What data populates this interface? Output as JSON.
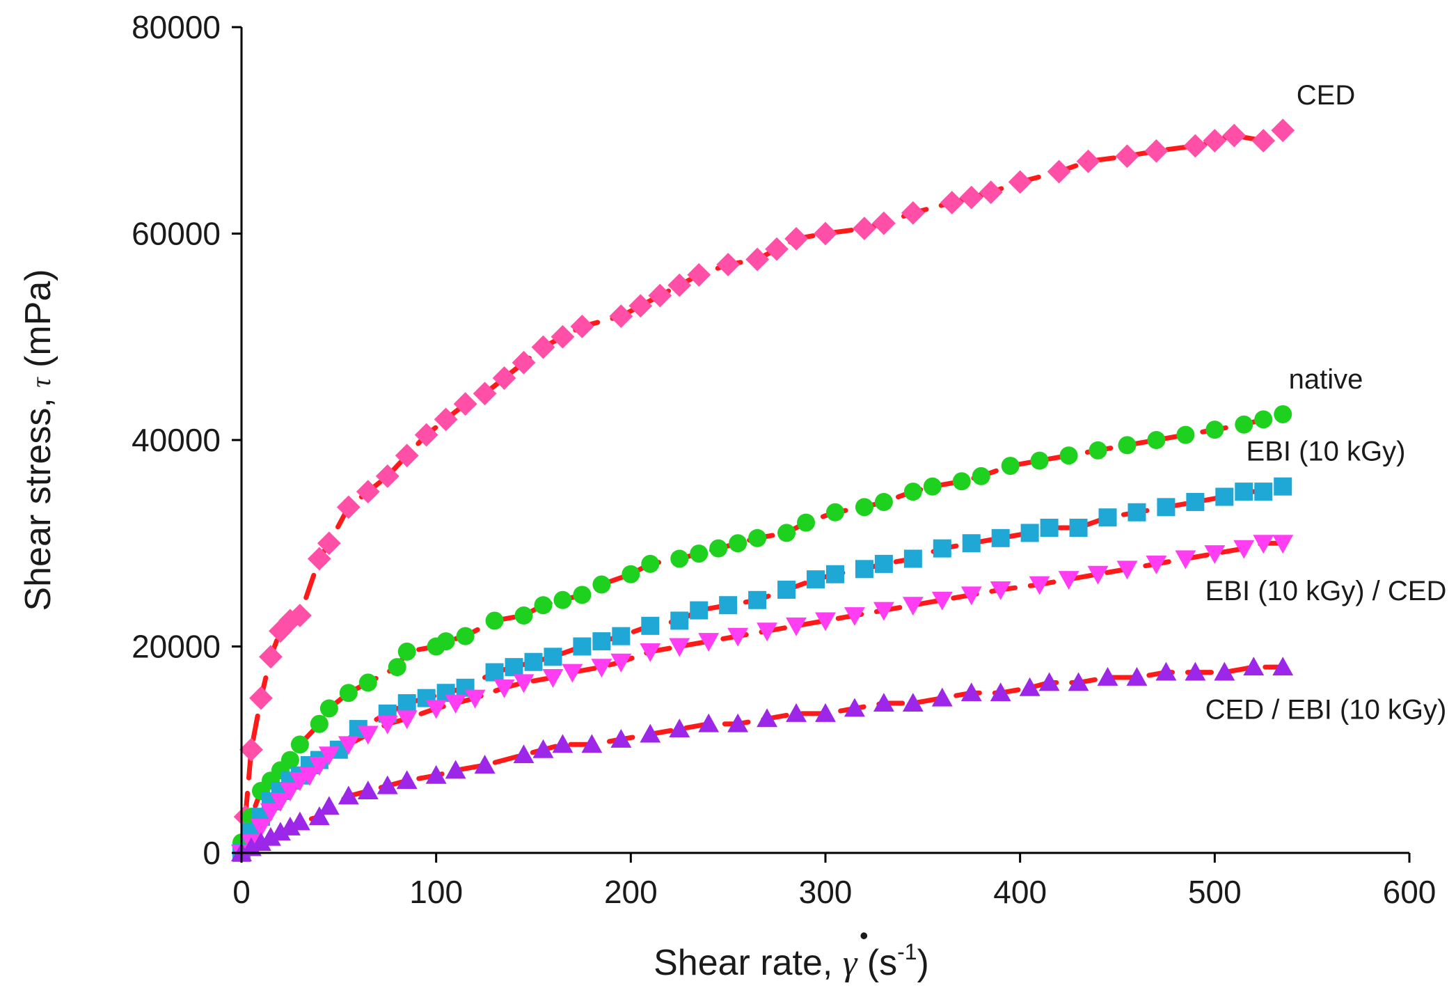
{
  "chart_data": {
    "type": "scatter",
    "title": "",
    "xlabel": "Shear rate, γ̇ (s⁻¹)",
    "xlabel_parts": {
      "prefix": "Shear rate, ",
      "symbol": "γ",
      "open": " (s",
      "sup": "-1",
      "close": ")"
    },
    "ylabel": "Shear stress, τ (mPa)",
    "ylabel_parts": {
      "prefix": "Shear stress, ",
      "symbol": "τ",
      "suffix": " (mPa)"
    },
    "xlim": [
      0,
      600
    ],
    "ylim": [
      0,
      80000
    ],
    "xticks": [
      "0",
      "100",
      "200",
      "300",
      "400",
      "500",
      "600"
    ],
    "yticks": [
      "0",
      "20000",
      "40000",
      "60000",
      "80000"
    ],
    "grid": false,
    "legend": "inline labels at right end of each series",
    "fit_line_color": "#ff1a1a",
    "series": [
      {
        "name": "CED",
        "label": "CED",
        "marker": "diamond",
        "color": "#ff4fa6",
        "x": [
          2,
          5,
          10,
          15,
          20,
          25,
          30,
          40,
          45,
          55,
          65,
          75,
          85,
          95,
          105,
          115,
          125,
          135,
          145,
          155,
          165,
          175,
          195,
          205,
          215,
          225,
          235,
          250,
          265,
          275,
          285,
          300,
          320,
          330,
          345,
          365,
          375,
          385,
          400,
          420,
          435,
          455,
          470,
          490,
          500,
          510,
          525,
          535
        ],
        "y": [
          3500,
          10000,
          15000,
          19000,
          21500,
          22500,
          23000,
          28500,
          30000,
          33500,
          35000,
          36500,
          38500,
          40500,
          42000,
          43500,
          44500,
          46000,
          47500,
          49000,
          50000,
          51000,
          52000,
          53000,
          54000,
          55000,
          56000,
          57000,
          57500,
          58500,
          59500,
          60000,
          60500,
          61000,
          62000,
          63000,
          63500,
          64000,
          65000,
          66000,
          67000,
          67500,
          68000,
          68500,
          69000,
          69500,
          69000,
          70000
        ]
      },
      {
        "name": "native",
        "label": "native",
        "marker": "circle",
        "color": "#1fd11f",
        "x": [
          0,
          5,
          10,
          15,
          20,
          25,
          30,
          40,
          45,
          55,
          65,
          80,
          85,
          100,
          105,
          115,
          130,
          145,
          155,
          165,
          175,
          185,
          200,
          210,
          225,
          235,
          245,
          255,
          265,
          280,
          290,
          305,
          320,
          330,
          345,
          355,
          370,
          380,
          395,
          410,
          425,
          440,
          455,
          470,
          485,
          500,
          515,
          525,
          535
        ],
        "y": [
          1000,
          3500,
          6000,
          7000,
          8000,
          9000,
          10500,
          12500,
          14000,
          15500,
          16500,
          18000,
          19500,
          20000,
          20500,
          21000,
          22500,
          23000,
          24000,
          24500,
          25000,
          26000,
          27000,
          28000,
          28500,
          29000,
          29500,
          30000,
          30500,
          31000,
          32000,
          33000,
          33500,
          34000,
          35000,
          35500,
          36000,
          36500,
          37500,
          38000,
          38500,
          39000,
          39500,
          40000,
          40500,
          41000,
          41500,
          42000,
          42500
        ]
      },
      {
        "name": "EBI (10 kGy)",
        "label": "EBI (10 kGy)",
        "marker": "square",
        "color": "#1fa8d6",
        "x": [
          0,
          5,
          10,
          15,
          20,
          25,
          30,
          35,
          40,
          50,
          60,
          75,
          85,
          95,
          105,
          115,
          130,
          140,
          150,
          160,
          175,
          185,
          195,
          210,
          225,
          235,
          250,
          265,
          280,
          295,
          305,
          320,
          330,
          345,
          360,
          375,
          390,
          405,
          415,
          430,
          445,
          460,
          475,
          490,
          505,
          515,
          525,
          535
        ],
        "y": [
          0,
          2000,
          3500,
          5000,
          6000,
          7000,
          7500,
          8500,
          9000,
          10000,
          12000,
          13500,
          14500,
          15000,
          15500,
          16000,
          17500,
          18000,
          18500,
          19000,
          20000,
          20500,
          21000,
          22000,
          22500,
          23500,
          24000,
          24500,
          25500,
          26500,
          27000,
          27500,
          28000,
          28500,
          29500,
          30000,
          30500,
          31000,
          31500,
          31500,
          32500,
          33000,
          33500,
          34000,
          34500,
          35000,
          35000,
          35500
        ]
      },
      {
        "name": "EBI (10 kGy) / CED",
        "label": "EBI (10 kGy) / CED",
        "marker": "triangle-down",
        "color": "#ff3df2",
        "x": [
          0,
          5,
          10,
          15,
          20,
          25,
          30,
          35,
          40,
          45,
          55,
          65,
          75,
          85,
          100,
          110,
          120,
          135,
          145,
          160,
          170,
          185,
          195,
          210,
          225,
          240,
          255,
          270,
          285,
          300,
          315,
          330,
          345,
          360,
          375,
          390,
          410,
          425,
          440,
          455,
          470,
          485,
          500,
          515,
          525,
          535
        ],
        "y": [
          0,
          1000,
          2500,
          4000,
          5000,
          6000,
          7000,
          7500,
          8500,
          9500,
          10500,
          11500,
          12500,
          13000,
          14000,
          14500,
          15000,
          16000,
          16500,
          17000,
          17500,
          18000,
          18500,
          19500,
          20000,
          20500,
          21000,
          21500,
          22000,
          22500,
          23000,
          23500,
          24000,
          24500,
          25000,
          25500,
          26000,
          26500,
          27000,
          27500,
          28000,
          28500,
          29000,
          29500,
          30000,
          30000
        ]
      },
      {
        "name": "CED / EBI (10 kGy)",
        "label": "CED / EBI (10 kGy)",
        "marker": "triangle-up",
        "color": "#9d27e8",
        "x": [
          0,
          5,
          10,
          15,
          20,
          25,
          30,
          40,
          45,
          55,
          65,
          75,
          85,
          100,
          110,
          125,
          145,
          155,
          165,
          180,
          195,
          210,
          225,
          240,
          255,
          270,
          285,
          300,
          315,
          330,
          345,
          360,
          375,
          390,
          405,
          415,
          430,
          445,
          460,
          475,
          490,
          505,
          520,
          535
        ],
        "y": [
          0,
          500,
          1000,
          1500,
          2000,
          2500,
          3000,
          3500,
          4500,
          5500,
          6000,
          6500,
          7000,
          7500,
          8000,
          8500,
          9500,
          10000,
          10500,
          10500,
          11000,
          11500,
          12000,
          12500,
          12500,
          13000,
          13500,
          13500,
          14000,
          14500,
          14500,
          15000,
          15500,
          15500,
          16000,
          16500,
          16500,
          17000,
          17000,
          17500,
          17500,
          17500,
          18000,
          18000
        ]
      }
    ]
  }
}
